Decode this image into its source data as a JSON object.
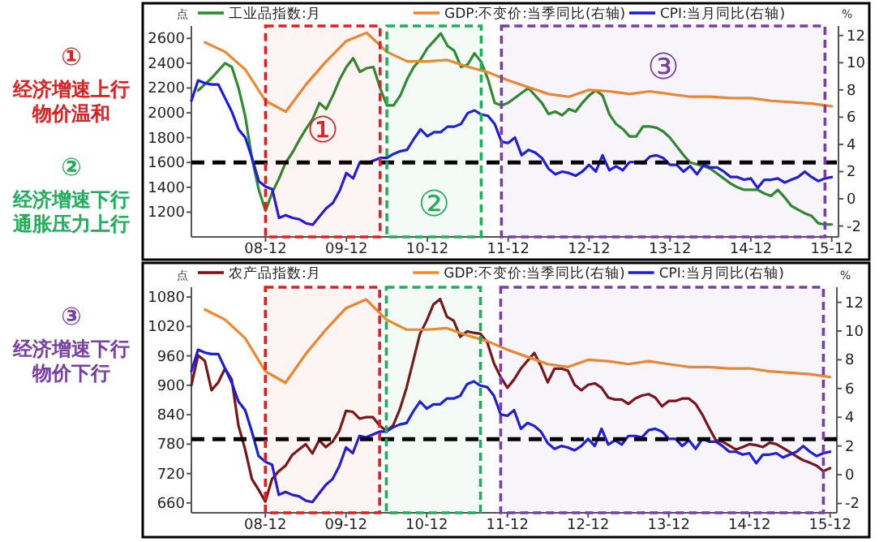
{
  "chart_data": [
    {
      "type": "line",
      "legend": "top",
      "ylabel": "点",
      "y2label": "%",
      "xlim": [
        "2008-01",
        "2016-01"
      ],
      "xticks": [
        {
          "value": "2008-12",
          "label": "08-12"
        },
        {
          "value": "2009-12",
          "label": "09-12"
        },
        {
          "value": "2010-12",
          "label": "10-12"
        },
        {
          "value": "2011-12",
          "label": "11-12"
        },
        {
          "value": "2012-12",
          "label": "12-12"
        },
        {
          "value": "2013-12",
          "label": "13-12"
        },
        {
          "value": "2014-12",
          "label": "14-12"
        },
        {
          "value": "2015-12",
          "label": "15-12"
        }
      ],
      "ylim": [
        1000,
        2700
      ],
      "yticks": [
        1200,
        1400,
        1600,
        1800,
        2000,
        2200,
        2400,
        2600
      ],
      "y2lim": [
        -2.8,
        12.7
      ],
      "y2ticks": [
        -2,
        0,
        2,
        4,
        6,
        8,
        10,
        12
      ],
      "ref_lines": [
        {
          "axis": "y",
          "value": 1600,
          "color": "#000000",
          "line_style": "dashed"
        }
      ],
      "bands": [
        {
          "axis": "x",
          "from": "2008-12",
          "to": "2010-05",
          "label": "①",
          "color": "#e02020"
        },
        {
          "axis": "x",
          "from": "2010-06",
          "to": "2011-08",
          "label": "②",
          "color": "#1fae5a"
        },
        {
          "axis": "x",
          "from": "2011-11",
          "to": "2015-11",
          "label": "③",
          "color": "#7a3fa6"
        }
      ],
      "annotations": [
        "①",
        "经济增速上行",
        "物价温和",
        "②",
        "经济增速下行",
        "通胀压力上行"
      ],
      "series": [
        {
          "name": "工业品指数:月",
          "color": "#2e8b2e",
          "x": [
            "2008-02",
            "2008-04",
            "2008-06",
            "2008-07",
            "2008-08",
            "2008-09",
            "2008-10",
            "2008-11",
            "2008-12",
            "2009-01",
            "2009-02",
            "2009-03",
            "2009-04",
            "2009-05",
            "2009-06",
            "2009-07",
            "2009-08",
            "2009-09",
            "2009-10",
            "2009-11",
            "2009-12",
            "2010-01",
            "2010-02",
            "2010-03",
            "2010-04",
            "2010-05",
            "2010-06",
            "2010-07",
            "2010-08",
            "2010-09",
            "2010-10",
            "2010-11",
            "2010-12",
            "2011-01",
            "2011-02",
            "2011-03",
            "2011-04",
            "2011-05",
            "2011-06",
            "2011-07",
            "2011-08",
            "2011-09",
            "2011-10",
            "2011-11",
            "2011-12",
            "2012-02",
            "2012-03",
            "2012-05",
            "2012-06",
            "2012-07",
            "2012-08",
            "2012-09",
            "2012-10",
            "2012-11",
            "2012-12",
            "2013-01",
            "2013-02",
            "2013-03",
            "2013-04",
            "2013-05",
            "2013-06",
            "2013-07",
            "2013-08",
            "2013-09",
            "2013-10",
            "2013-11",
            "2013-12",
            "2014-01",
            "2014-02",
            "2014-03",
            "2014-05",
            "2014-06",
            "2014-07",
            "2014-08",
            "2014-09",
            "2014-10",
            "2014-11",
            "2014-12",
            "2015-01",
            "2015-02",
            "2015-03",
            "2015-04",
            "2015-05",
            "2015-06",
            "2015-07",
            "2015-08",
            "2015-09",
            "2015-10",
            "2015-11",
            "2015-12"
          ],
          "values": [
            2180,
            2280,
            2400,
            2370,
            2200,
            1970,
            1630,
            1380,
            1210,
            1360,
            1470,
            1600,
            1680,
            1780,
            1870,
            1950,
            2080,
            2030,
            2140,
            2270,
            2370,
            2440,
            2330,
            2360,
            2370,
            2200,
            2060,
            2060,
            2140,
            2270,
            2370,
            2430,
            2520,
            2580,
            2640,
            2540,
            2500,
            2370,
            2390,
            2480,
            2410,
            2270,
            2080,
            2060,
            2080,
            2160,
            2200,
            2080,
            1990,
            2010,
            1980,
            2030,
            2010,
            2080,
            2140,
            2180,
            2140,
            1990,
            1910,
            1870,
            1810,
            1810,
            1890,
            1890,
            1880,
            1850,
            1800,
            1730,
            1660,
            1600,
            1570,
            1550,
            1510,
            1470,
            1430,
            1400,
            1380,
            1380,
            1380,
            1350,
            1330,
            1380,
            1320,
            1250,
            1220,
            1190,
            1170,
            1110,
            1100,
            1100
          ]
        },
        {
          "name": "GDP:不变价:当季同比(右轴)",
          "color": "#f0892e",
          "axis": "y2",
          "x": [
            "2008-03",
            "2008-06",
            "2008-09",
            "2008-12",
            "2009-03",
            "2009-06",
            "2009-09",
            "2009-12",
            "2010-03",
            "2010-06",
            "2010-09",
            "2010-12",
            "2011-03",
            "2011-06",
            "2011-09",
            "2011-12",
            "2012-03",
            "2012-06",
            "2012-09",
            "2012-12",
            "2013-03",
            "2013-06",
            "2013-09",
            "2013-12",
            "2014-03",
            "2014-06",
            "2014-09",
            "2014-12",
            "2015-03",
            "2015-06",
            "2015-09",
            "2015-12"
          ],
          "values": [
            11.5,
            10.8,
            9.5,
            7.2,
            6.4,
            8.4,
            10.1,
            11.6,
            12.2,
            10.8,
            10.1,
            10.1,
            10.2,
            9.7,
            9.3,
            8.7,
            8.2,
            7.7,
            7.5,
            8.0,
            7.9,
            7.7,
            7.9,
            7.7,
            7.5,
            7.5,
            7.4,
            7.4,
            7.2,
            7.1,
            7.0,
            6.8
          ]
        },
        {
          "name": "CPI:当月同比(右轴)",
          "color": "#1c1ce0",
          "axis": "y2",
          "x": [
            "2008-01",
            "2008-02",
            "2008-03",
            "2008-04",
            "2008-05",
            "2008-06",
            "2008-07",
            "2008-08",
            "2008-09",
            "2008-10",
            "2008-11",
            "2008-12",
            "2009-01",
            "2009-02",
            "2009-03",
            "2009-04",
            "2009-05",
            "2009-06",
            "2009-07",
            "2009-08",
            "2009-09",
            "2009-10",
            "2009-11",
            "2009-12",
            "2010-01",
            "2010-02",
            "2010-03",
            "2010-04",
            "2010-05",
            "2010-06",
            "2010-07",
            "2010-08",
            "2010-09",
            "2010-10",
            "2010-11",
            "2010-12",
            "2011-01",
            "2011-02",
            "2011-03",
            "2011-04",
            "2011-05",
            "2011-06",
            "2011-07",
            "2011-08",
            "2011-09",
            "2011-10",
            "2011-11",
            "2011-12",
            "2012-01",
            "2012-02",
            "2012-03",
            "2012-04",
            "2012-05",
            "2012-06",
            "2012-07",
            "2012-08",
            "2012-09",
            "2012-10",
            "2012-11",
            "2012-12",
            "2013-01",
            "2013-02",
            "2013-03",
            "2013-04",
            "2013-05",
            "2013-06",
            "2013-07",
            "2013-08",
            "2013-09",
            "2013-10",
            "2013-11",
            "2013-12",
            "2014-01",
            "2014-02",
            "2014-03",
            "2014-04",
            "2014-05",
            "2014-06",
            "2014-07",
            "2014-08",
            "2014-09",
            "2014-10",
            "2014-11",
            "2014-12",
            "2015-01",
            "2015-02",
            "2015-03",
            "2015-04",
            "2015-05",
            "2015-06",
            "2015-07",
            "2015-08",
            "2015-09",
            "2015-10",
            "2015-11",
            "2015-12"
          ],
          "values": [
            7.2,
            8.7,
            8.5,
            8.4,
            8.4,
            7.4,
            6.4,
            5.1,
            4.5,
            3.0,
            1.3,
            0.9,
            0.7,
            -1.4,
            -1.2,
            -1.4,
            -1.5,
            -1.8,
            -1.9,
            -1.3,
            -0.7,
            -0.3,
            0.6,
            1.9,
            1.5,
            2.7,
            2.6,
            2.8,
            3.0,
            3.0,
            3.3,
            3.5,
            3.6,
            4.4,
            5.1,
            4.6,
            4.9,
            4.9,
            5.3,
            5.3,
            5.5,
            6.3,
            6.5,
            6.2,
            6.1,
            5.5,
            4.2,
            4.1,
            4.5,
            3.2,
            3.6,
            3.4,
            3.0,
            2.2,
            1.8,
            2.0,
            1.9,
            1.7,
            2.0,
            2.5,
            2.0,
            3.2,
            2.1,
            2.4,
            2.1,
            2.7,
            2.7,
            2.6,
            3.1,
            3.2,
            3.0,
            2.5,
            2.5,
            2.0,
            2.4,
            1.8,
            2.5,
            2.3,
            2.3,
            2.0,
            1.6,
            1.6,
            1.4,
            1.5,
            0.8,
            1.4,
            1.4,
            1.5,
            1.2,
            1.4,
            1.6,
            2.0,
            1.6,
            1.3,
            1.5,
            1.6
          ]
        }
      ]
    },
    {
      "type": "line",
      "legend": "top",
      "ylabel": "点",
      "y2label": "%",
      "xlim": [
        "2008-01",
        "2016-01"
      ],
      "xticks": [
        {
          "value": "2008-12",
          "label": "08-12"
        },
        {
          "value": "2009-12",
          "label": "09-12"
        },
        {
          "value": "2010-12",
          "label": "10-12"
        },
        {
          "value": "2011-12",
          "label": "11-12"
        },
        {
          "value": "2012-12",
          "label": "12-12"
        },
        {
          "value": "2013-12",
          "label": "13-12"
        },
        {
          "value": "2014-12",
          "label": "14-12"
        },
        {
          "value": "2015-12",
          "label": "15-12"
        }
      ],
      "ylim": [
        640,
        1100
      ],
      "yticks": [
        660,
        720,
        780,
        840,
        900,
        960,
        1020,
        1080
      ],
      "y2lim": [
        -2.65,
        13.05
      ],
      "y2ticks": [
        -2,
        0,
        2,
        4,
        6,
        8,
        10,
        12
      ],
      "ref_lines": [
        {
          "axis": "y",
          "value": 790,
          "color": "#000000",
          "line_style": "dashed"
        }
      ],
      "bands": [
        {
          "axis": "x",
          "from": "2008-12",
          "to": "2010-05",
          "color": "#e02020"
        },
        {
          "axis": "x",
          "from": "2010-06",
          "to": "2011-08",
          "color": "#1fae5a"
        },
        {
          "axis": "x",
          "from": "2011-11",
          "to": "2015-11",
          "color": "#7a3fa6"
        }
      ],
      "annotations": [
        "③",
        "经济增速下行",
        "物价下行"
      ],
      "series": [
        {
          "name": "农产品指数:月",
          "color": "#7a1515",
          "x": [
            "2008-01",
            "2008-02",
            "2008-03",
            "2008-04",
            "2008-05",
            "2008-06",
            "2008-07",
            "2008-08",
            "2008-09",
            "2008-10",
            "2008-11",
            "2008-12",
            "2009-01",
            "2009-02",
            "2009-03",
            "2009-04",
            "2009-05",
            "2009-06",
            "2009-07",
            "2009-08",
            "2009-09",
            "2009-10",
            "2009-11",
            "2009-12",
            "2010-01",
            "2010-02",
            "2010-03",
            "2010-04",
            "2010-05",
            "2010-06",
            "2010-07",
            "2010-08",
            "2010-09",
            "2010-10",
            "2010-11",
            "2010-12",
            "2011-01",
            "2011-02",
            "2011-03",
            "2011-04",
            "2011-05",
            "2011-06",
            "2011-07",
            "2011-08",
            "2011-09",
            "2011-10",
            "2011-11",
            "2011-12",
            "2012-01",
            "2012-02",
            "2012-03",
            "2012-04",
            "2012-05",
            "2012-06",
            "2012-07",
            "2012-08",
            "2012-09",
            "2012-10",
            "2012-11",
            "2012-12",
            "2013-01",
            "2013-02",
            "2013-03",
            "2013-04",
            "2013-05",
            "2013-06",
            "2013-07",
            "2013-08",
            "2013-09",
            "2013-10",
            "2013-11",
            "2013-12",
            "2014-01",
            "2014-02",
            "2014-03",
            "2014-04",
            "2014-05",
            "2014-06",
            "2014-07",
            "2014-08",
            "2014-09",
            "2014-10",
            "2014-11",
            "2014-12",
            "2015-01",
            "2015-02",
            "2015-03",
            "2015-04",
            "2015-05",
            "2015-06",
            "2015-07",
            "2015-08",
            "2015-09",
            "2015-10",
            "2015-11",
            "2015-12"
          ],
          "values": [
            900,
            961,
            950,
            890,
            906,
            934,
            912,
            818,
            769,
            709,
            687,
            663,
            709,
            725,
            736,
            758,
            769,
            780,
            761,
            788,
            774,
            785,
            807,
            848,
            846,
            832,
            835,
            835,
            818,
            807,
            818,
            851,
            895,
            950,
            1005,
            1032,
            1065,
            1076,
            1040,
            1032,
            999,
            1010,
            1007,
            1005,
            988,
            945,
            917,
            895,
            912,
            934,
            950,
            966,
            939,
            906,
            934,
            934,
            930,
            901,
            890,
            901,
            904,
            895,
            875,
            871,
            871,
            862,
            873,
            879,
            882,
            875,
            857,
            868,
            868,
            873,
            873,
            862,
            840,
            813,
            788,
            785,
            777,
            769,
            774,
            780,
            778,
            774,
            783,
            780,
            772,
            764,
            755,
            747,
            742,
            736,
            725,
            731
          ]
        },
        {
          "name": "GDP:不变价:当季同比(右轴)",
          "color": "#f0892e",
          "axis": "y2",
          "x": [
            "2008-03",
            "2008-06",
            "2008-09",
            "2008-12",
            "2009-03",
            "2009-06",
            "2009-09",
            "2009-12",
            "2010-03",
            "2010-06",
            "2010-09",
            "2010-12",
            "2011-03",
            "2011-06",
            "2011-09",
            "2011-12",
            "2012-03",
            "2012-06",
            "2012-09",
            "2012-12",
            "2013-03",
            "2013-06",
            "2013-09",
            "2013-12",
            "2014-03",
            "2014-06",
            "2014-09",
            "2014-12",
            "2015-03",
            "2015-06",
            "2015-09",
            "2015-12"
          ],
          "values": [
            11.5,
            10.8,
            9.5,
            7.2,
            6.4,
            8.4,
            10.1,
            11.6,
            12.2,
            10.8,
            10.1,
            10.1,
            10.2,
            9.7,
            9.3,
            8.7,
            8.2,
            7.7,
            7.5,
            8.0,
            7.9,
            7.7,
            7.9,
            7.7,
            7.5,
            7.5,
            7.4,
            7.4,
            7.2,
            7.1,
            7.0,
            6.8
          ]
        },
        {
          "name": "CPI:当月同比(右轴)",
          "color": "#1c1ce0",
          "axis": "y2",
          "x": [
            "2008-01",
            "2008-02",
            "2008-03",
            "2008-04",
            "2008-05",
            "2008-06",
            "2008-07",
            "2008-08",
            "2008-09",
            "2008-10",
            "2008-11",
            "2008-12",
            "2009-01",
            "2009-02",
            "2009-03",
            "2009-04",
            "2009-05",
            "2009-06",
            "2009-07",
            "2009-08",
            "2009-09",
            "2009-10",
            "2009-11",
            "2009-12",
            "2010-01",
            "2010-02",
            "2010-03",
            "2010-04",
            "2010-05",
            "2010-06",
            "2010-07",
            "2010-08",
            "2010-09",
            "2010-10",
            "2010-11",
            "2010-12",
            "2011-01",
            "2011-02",
            "2011-03",
            "2011-04",
            "2011-05",
            "2011-06",
            "2011-07",
            "2011-08",
            "2011-09",
            "2011-10",
            "2011-11",
            "2011-12",
            "2012-01",
            "2012-02",
            "2012-03",
            "2012-04",
            "2012-05",
            "2012-06",
            "2012-07",
            "2012-08",
            "2012-09",
            "2012-10",
            "2012-11",
            "2012-12",
            "2013-01",
            "2013-02",
            "2013-03",
            "2013-04",
            "2013-05",
            "2013-06",
            "2013-07",
            "2013-08",
            "2013-09",
            "2013-10",
            "2013-11",
            "2013-12",
            "2014-01",
            "2014-02",
            "2014-03",
            "2014-04",
            "2014-05",
            "2014-06",
            "2014-07",
            "2014-08",
            "2014-09",
            "2014-10",
            "2014-11",
            "2014-12",
            "2015-01",
            "2015-02",
            "2015-03",
            "2015-04",
            "2015-05",
            "2015-06",
            "2015-07",
            "2015-08",
            "2015-09",
            "2015-10",
            "2015-11",
            "2015-12"
          ],
          "values": [
            7.2,
            8.7,
            8.5,
            8.4,
            8.4,
            7.4,
            6.4,
            5.1,
            4.5,
            3.0,
            1.3,
            0.9,
            0.7,
            -1.4,
            -1.2,
            -1.4,
            -1.5,
            -1.8,
            -1.9,
            -1.3,
            -0.7,
            -0.3,
            0.6,
            1.9,
            1.5,
            2.7,
            2.6,
            2.8,
            3.0,
            3.0,
            3.3,
            3.5,
            3.6,
            4.4,
            5.1,
            4.6,
            4.9,
            4.9,
            5.3,
            5.3,
            5.5,
            6.3,
            6.5,
            6.2,
            6.1,
            5.5,
            4.2,
            4.1,
            4.5,
            3.2,
            3.6,
            3.4,
            3.0,
            2.2,
            1.8,
            2.0,
            1.9,
            1.7,
            2.0,
            2.5,
            2.0,
            3.2,
            2.1,
            2.4,
            2.1,
            2.7,
            2.7,
            2.6,
            3.1,
            3.2,
            3.0,
            2.5,
            2.5,
            2.0,
            2.4,
            1.8,
            2.5,
            2.3,
            2.3,
            2.0,
            1.6,
            1.6,
            1.4,
            1.5,
            0.8,
            1.4,
            1.4,
            1.5,
            1.2,
            1.4,
            1.6,
            2.0,
            1.6,
            1.3,
            1.5,
            1.6
          ]
        }
      ]
    }
  ]
}
